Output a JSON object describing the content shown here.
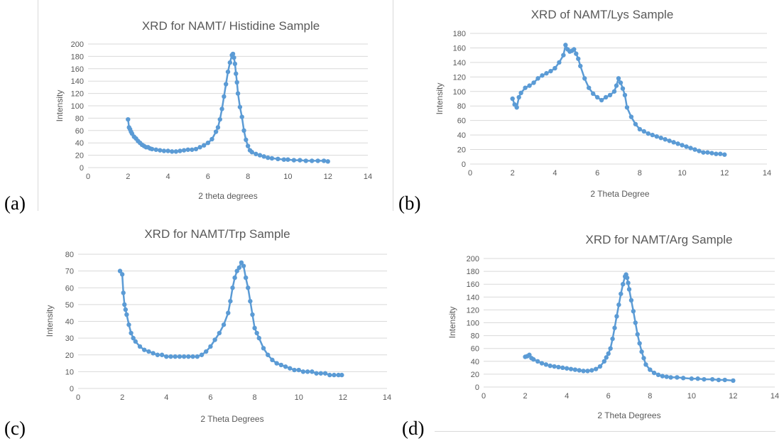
{
  "panels": [
    "(a)",
    "(b)",
    "(c)",
    "(d)"
  ],
  "chart_data": [
    {
      "type": "line",
      "title": "XRD for NAMT/ Histidine Sample",
      "xlabel": "2 theta degrees",
      "ylabel": "Intensity",
      "xlim": [
        0,
        14
      ],
      "ylim": [
        0,
        200
      ],
      "xticks": [
        0,
        2,
        4,
        6,
        8,
        10,
        12,
        14
      ],
      "yticks": [
        0,
        20,
        40,
        60,
        80,
        100,
        120,
        140,
        160,
        180,
        200
      ],
      "grid": "horizontal",
      "color": "#5b9bd5",
      "series": [
        {
          "x": [
            2.0,
            2.05,
            2.1,
            2.15,
            2.2,
            2.3,
            2.4,
            2.5,
            2.6,
            2.7,
            2.8,
            2.9,
            3.0,
            3.1,
            3.2,
            3.4,
            3.6,
            3.8,
            4.0,
            4.2,
            4.4,
            4.6,
            4.8,
            5.0,
            5.2,
            5.4,
            5.6,
            5.8,
            6.0,
            6.2,
            6.4,
            6.5,
            6.6,
            6.7,
            6.8,
            6.9,
            7.0,
            7.1,
            7.2,
            7.25,
            7.3,
            7.35,
            7.4,
            7.45,
            7.5,
            7.6,
            7.7,
            7.8,
            7.9,
            8.0,
            8.1,
            8.2,
            8.4,
            8.6,
            8.8,
            9.0,
            9.2,
            9.5,
            9.8,
            10.0,
            10.3,
            10.6,
            10.9,
            11.2,
            11.5,
            11.8,
            12.0
          ],
          "y": [
            78,
            65,
            62,
            58,
            55,
            50,
            47,
            43,
            40,
            37,
            35,
            33,
            33,
            31,
            30,
            29,
            28,
            27,
            27,
            26,
            26,
            27,
            28,
            29,
            29,
            30,
            33,
            36,
            40,
            46,
            58,
            65,
            78,
            95,
            115,
            135,
            155,
            170,
            182,
            184,
            178,
            168,
            152,
            138,
            120,
            98,
            82,
            60,
            45,
            35,
            28,
            25,
            22,
            20,
            18,
            16,
            15,
            14,
            13,
            13,
            12,
            12,
            11,
            11,
            11,
            11,
            10
          ]
        }
      ]
    },
    {
      "type": "line",
      "title": "XRD of NAMT/Lys Sample",
      "xlabel": "2 Theta Degree",
      "ylabel": "Intensity",
      "xlim": [
        0,
        14
      ],
      "ylim": [
        0,
        180
      ],
      "xticks": [
        0,
        2,
        4,
        6,
        8,
        10,
        12,
        14
      ],
      "yticks": [
        0,
        20,
        40,
        60,
        80,
        100,
        120,
        140,
        160,
        180
      ],
      "grid": "horizontal",
      "color": "#5b9bd5",
      "series": [
        {
          "x": [
            2.0,
            2.1,
            2.2,
            2.3,
            2.4,
            2.6,
            2.8,
            3.0,
            3.2,
            3.4,
            3.6,
            3.8,
            4.0,
            4.2,
            4.4,
            4.5,
            4.6,
            4.7,
            4.8,
            4.9,
            5.0,
            5.1,
            5.2,
            5.4,
            5.6,
            5.8,
            6.0,
            6.2,
            6.4,
            6.6,
            6.8,
            6.9,
            7.0,
            7.1,
            7.2,
            7.3,
            7.4,
            7.6,
            7.8,
            8.0,
            8.2,
            8.4,
            8.6,
            8.8,
            9.0,
            9.2,
            9.4,
            9.6,
            9.8,
            10.0,
            10.2,
            10.4,
            10.6,
            10.8,
            11.0,
            11.2,
            11.4,
            11.6,
            11.8,
            12.0
          ],
          "y": [
            90,
            82,
            78,
            92,
            98,
            105,
            108,
            112,
            118,
            122,
            125,
            128,
            132,
            140,
            150,
            164,
            158,
            155,
            156,
            158,
            152,
            145,
            135,
            118,
            105,
            97,
            92,
            88,
            92,
            95,
            100,
            108,
            118,
            112,
            104,
            95,
            78,
            65,
            55,
            48,
            45,
            42,
            40,
            38,
            36,
            34,
            32,
            30,
            28,
            26,
            24,
            22,
            20,
            18,
            16,
            16,
            15,
            14,
            14,
            13
          ]
        }
      ]
    },
    {
      "type": "line",
      "title": "XRD for NAMT/Trp Sample",
      "xlabel": "2 Theta Degrees",
      "ylabel": "Intensity",
      "xlim": [
        0,
        14
      ],
      "ylim": [
        0,
        80
      ],
      "xticks": [
        0,
        2,
        4,
        6,
        8,
        10,
        12,
        14
      ],
      "yticks": [
        0,
        10,
        20,
        30,
        40,
        50,
        60,
        70,
        80
      ],
      "grid": "horizontal",
      "color": "#5b9bd5",
      "series": [
        {
          "x": [
            1.9,
            2.0,
            2.05,
            2.1,
            2.15,
            2.2,
            2.3,
            2.4,
            2.5,
            2.6,
            2.8,
            3.0,
            3.2,
            3.4,
            3.6,
            3.8,
            4.0,
            4.2,
            4.4,
            4.6,
            4.8,
            5.0,
            5.2,
            5.4,
            5.6,
            5.8,
            6.0,
            6.2,
            6.4,
            6.6,
            6.8,
            6.9,
            7.0,
            7.1,
            7.2,
            7.3,
            7.4,
            7.5,
            7.6,
            7.7,
            7.8,
            7.9,
            8.0,
            8.1,
            8.2,
            8.4,
            8.6,
            8.8,
            9.0,
            9.2,
            9.4,
            9.6,
            9.8,
            10.0,
            10.2,
            10.4,
            10.6,
            10.8,
            11.0,
            11.2,
            11.4,
            11.6,
            11.8,
            11.95
          ],
          "y": [
            70,
            68,
            57,
            50,
            47,
            44,
            38,
            33,
            30,
            28,
            25,
            23,
            22,
            21,
            20,
            20,
            19,
            19,
            19,
            19,
            19,
            19,
            19,
            19,
            20,
            22,
            25,
            29,
            33,
            38,
            45,
            52,
            60,
            66,
            70,
            72,
            75,
            73,
            66,
            60,
            52,
            44,
            36,
            33,
            30,
            24,
            20,
            17,
            15,
            14,
            13,
            12,
            11,
            11,
            10,
            10,
            10,
            9,
            9,
            9,
            8,
            8,
            8,
            8
          ]
        }
      ]
    },
    {
      "type": "line",
      "title": "XRD for NAMT/Arg Sample",
      "xlabel": "2 Theta Degrees",
      "ylabel": "Intensity",
      "xlim": [
        0,
        14
      ],
      "ylim": [
        0,
        200
      ],
      "xticks": [
        0,
        2,
        4,
        6,
        8,
        10,
        12,
        14
      ],
      "yticks": [
        0,
        20,
        40,
        60,
        80,
        100,
        120,
        140,
        160,
        180,
        200
      ],
      "grid": "horizontal",
      "color": "#5b9bd5",
      "series": [
        {
          "x": [
            2.0,
            2.1,
            2.2,
            2.3,
            2.4,
            2.6,
            2.8,
            3.0,
            3.2,
            3.4,
            3.6,
            3.8,
            4.0,
            4.2,
            4.4,
            4.6,
            4.8,
            5.0,
            5.2,
            5.4,
            5.6,
            5.8,
            5.9,
            6.0,
            6.1,
            6.2,
            6.3,
            6.4,
            6.5,
            6.6,
            6.7,
            6.8,
            6.85,
            6.9,
            6.95,
            7.0,
            7.1,
            7.2,
            7.3,
            7.4,
            7.5,
            7.6,
            7.7,
            7.8,
            8.0,
            8.2,
            8.4,
            8.6,
            8.8,
            9.0,
            9.3,
            9.6,
            10.0,
            10.3,
            10.6,
            11.0,
            11.3,
            11.6,
            12.0
          ],
          "y": [
            47,
            48,
            50,
            45,
            43,
            40,
            37,
            35,
            33,
            32,
            31,
            30,
            29,
            28,
            27,
            26,
            25,
            25,
            26,
            28,
            32,
            40,
            46,
            52,
            60,
            75,
            92,
            110,
            128,
            145,
            160,
            172,
            175,
            170,
            162,
            152,
            135,
            118,
            100,
            82,
            68,
            55,
            45,
            35,
            27,
            22,
            19,
            17,
            16,
            15,
            15,
            14,
            13,
            13,
            12,
            12,
            11,
            11,
            10
          ]
        }
      ]
    }
  ]
}
